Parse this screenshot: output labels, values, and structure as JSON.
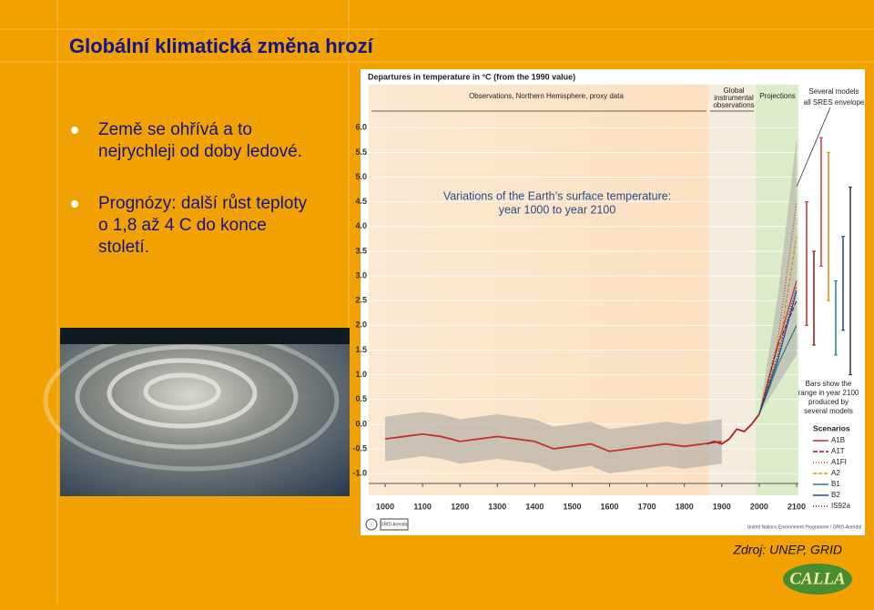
{
  "slide": {
    "title": "Globální klimatická změna hrozí",
    "bullets": [
      [
        "Země se ohřívá a to",
        "nejrychleji od doby ledové."
      ],
      [
        "Prognózy: další růst teploty",
        "o 1,8 až 4  C do konce",
        "století."
      ]
    ],
    "source": "Zdroj: UNEP, GRID",
    "logo": "CALLA"
  },
  "chart_data": {
    "type": "line",
    "title": "Departures in temperature in °C (from the 1990 value)",
    "section_labels": [
      [
        "Observations, Northern Hemisphere, proxy data"
      ],
      [
        "Global",
        "instrumental",
        "observations"
      ],
      [
        "Projections"
      ],
      [
        "Several models",
        "all SRES envelope"
      ]
    ],
    "overlay_title": [
      "Variations of the Earth’s surface temperature:",
      "year 1000 to year 2100"
    ],
    "bars_note": [
      "Bars show the",
      "range in year 2100",
      "produced by",
      "several models"
    ],
    "legend_title": "Scenarios",
    "footer": "United Nations Environment Programme / GRID-Arendal",
    "footer_logo": "GRID Arendal",
    "xlim": [
      956,
      2105
    ],
    "ylim": [
      -1.2,
      6.3
    ],
    "xticks": [
      1000,
      1100,
      1200,
      1300,
      1400,
      1500,
      1600,
      1700,
      1800,
      1900,
      2000,
      2100
    ],
    "yticks": [
      {
        "value": 6,
        "label": "6.0"
      },
      {
        "value": 5.5,
        "label": "5.5"
      },
      {
        "value": 5,
        "label": "5.0"
      },
      {
        "value": 4.5,
        "label": "4.5"
      },
      {
        "value": 4,
        "label": "4.0"
      },
      {
        "value": 3.5,
        "label": "3.5"
      },
      {
        "value": 3,
        "label": "3.0"
      },
      {
        "value": 2.5,
        "label": "2.5"
      },
      {
        "value": 2,
        "label": "2.0"
      },
      {
        "value": 1.5,
        "label": "1.5"
      },
      {
        "value": 1,
        "label": "1.0"
      },
      {
        "value": 0.5,
        "label": "0.5"
      },
      {
        "value": 0,
        "label": "0.0"
      },
      -0.5,
      {
        "value": -1,
        "label": "-1.0"
      }
    ],
    "proxy": {
      "color": "#c8302c",
      "uncertainty": 0.45,
      "x": [
        1000,
        1050,
        1100,
        1150,
        1200,
        1250,
        1300,
        1350,
        1400,
        1450,
        1500,
        1550,
        1600,
        1650,
        1700,
        1750,
        1800,
        1850,
        1900
      ],
      "values": [
        -0.3,
        -0.25,
        -0.2,
        -0.25,
        -0.35,
        -0.3,
        -0.25,
        -0.3,
        -0.35,
        -0.5,
        -0.45,
        -0.4,
        -0.55,
        -0.5,
        -0.45,
        -0.4,
        -0.45,
        -0.4,
        -0.35
      ]
    },
    "instrumental": {
      "color": "#b02020",
      "x": [
        1860,
        1880,
        1900,
        1920,
        1940,
        1960,
        1980,
        2000
      ],
      "values": [
        -0.4,
        -0.35,
        -0.4,
        -0.3,
        -0.1,
        -0.15,
        0,
        0.2
      ]
    },
    "envelope": {
      "color": "#b8b8b0",
      "x": [
        2000,
        2050,
        2100
      ],
      "low": [
        0.2,
        0.8,
        1.4
      ],
      "high": [
        0.2,
        2.6,
        5.8
      ]
    },
    "series": [
      {
        "name": "A1B",
        "color": "#c82828",
        "dash": "",
        "x": [
          2000,
          2050,
          2100
        ],
        "values": [
          0.2,
          1.6,
          2.9
        ]
      },
      {
        "name": "A1T",
        "color": "#8a1818",
        "dash": "5 2",
        "x": [
          2000,
          2050,
          2100
        ],
        "values": [
          0.2,
          1.6,
          2.5
        ]
      },
      {
        "name": "A1FI",
        "color": "#c83838",
        "dash": "1 2",
        "x": [
          2000,
          2050,
          2100
        ],
        "values": [
          0.2,
          1.7,
          4.5
        ]
      },
      {
        "name": "A2",
        "color": "#e08a10",
        "dash": "4 2",
        "x": [
          2000,
          2050,
          2100
        ],
        "values": [
          0.2,
          1.4,
          3.8
        ]
      },
      {
        "name": "B1",
        "color": "#208080",
        "dash": "",
        "x": [
          2000,
          2050,
          2100
        ],
        "values": [
          0.2,
          1.2,
          2.0
        ]
      },
      {
        "name": "B2",
        "color": "#2040a0",
        "dash": "",
        "x": [
          2000,
          2050,
          2100
        ],
        "values": [
          0.2,
          1.3,
          2.7
        ]
      },
      {
        "name": "IS92a",
        "color": "#303030",
        "dash": "1 2",
        "x": [
          2000,
          2050,
          2100
        ],
        "values": [
          0.2,
          1.4,
          2.8
        ]
      }
    ],
    "range_bars": [
      {
        "low": 2.0,
        "high": 4.5,
        "color": "#c82828"
      },
      {
        "low": 1.6,
        "high": 3.5,
        "color": "#8a1818"
      },
      {
        "low": 3.2,
        "high": 5.8,
        "color": "#c83838"
      },
      {
        "low": 2.5,
        "high": 5.5,
        "color": "#e08a10"
      },
      {
        "low": 1.4,
        "high": 2.9,
        "color": "#208080"
      },
      {
        "low": 1.9,
        "high": 3.8,
        "color": "#2040a0"
      },
      {
        "low": 1.0,
        "high": 4.8,
        "color": "#303030"
      }
    ]
  }
}
